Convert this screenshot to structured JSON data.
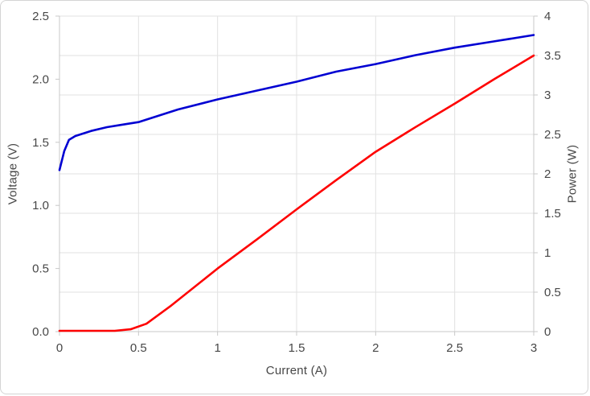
{
  "chart_data": {
    "type": "line",
    "title": "",
    "legend": "none",
    "grid": "on",
    "x_axis": {
      "label": "Current (A)",
      "range": [
        0,
        3
      ],
      "ticks": [
        0,
        0.5,
        1,
        1.5,
        2,
        2.5,
        3
      ],
      "tick_labels": [
        "0",
        "0.5",
        "1",
        "1.5",
        "2",
        "2.5",
        "3"
      ],
      "gridlines": true
    },
    "y_axis_left": {
      "label": "Voltage (V)",
      "range": [
        0,
        2.5
      ],
      "ticks": [
        0,
        0.5,
        1,
        1.5,
        2,
        2.5
      ],
      "tick_labels": [
        "0.0",
        "0.5",
        "1.0",
        "1.5",
        "2.0",
        "2.5"
      ],
      "gridlines": false
    },
    "y_axis_right": {
      "label": "Power (W)",
      "range": [
        0,
        4
      ],
      "ticks": [
        0,
        0.5,
        1,
        1.5,
        2,
        2.5,
        3,
        3.5,
        4
      ],
      "tick_labels": [
        "0",
        "0.5",
        "1",
        "1.5",
        "2",
        "2.5",
        "3",
        "3.5",
        "4"
      ],
      "gridlines": true
    },
    "series": [
      {
        "name": "Voltage",
        "axis": "left",
        "color": "#0000d2",
        "points": [
          [
            0,
            1.28
          ],
          [
            0.03,
            1.43
          ],
          [
            0.06,
            1.52
          ],
          [
            0.1,
            1.55
          ],
          [
            0.2,
            1.59
          ],
          [
            0.3,
            1.62
          ],
          [
            0.4,
            1.64
          ],
          [
            0.5,
            1.66
          ],
          [
            0.75,
            1.76
          ],
          [
            1.0,
            1.84
          ],
          [
            1.25,
            1.91
          ],
          [
            1.5,
            1.98
          ],
          [
            1.75,
            2.06
          ],
          [
            2.0,
            2.12
          ],
          [
            2.25,
            2.19
          ],
          [
            2.5,
            2.25
          ],
          [
            2.75,
            2.3
          ],
          [
            3.0,
            2.35
          ]
        ]
      },
      {
        "name": "Power",
        "axis": "right",
        "color": "#fe0000",
        "points": [
          [
            0,
            0.01
          ],
          [
            0.35,
            0.01
          ],
          [
            0.45,
            0.03
          ],
          [
            0.55,
            0.1
          ],
          [
            0.7,
            0.32
          ],
          [
            1.0,
            0.8
          ],
          [
            1.25,
            1.17
          ],
          [
            1.5,
            1.55
          ],
          [
            1.75,
            1.92
          ],
          [
            2.0,
            2.28
          ],
          [
            2.25,
            2.59
          ],
          [
            2.5,
            2.89
          ],
          [
            2.75,
            3.2
          ],
          [
            3.0,
            3.5
          ]
        ]
      }
    ]
  },
  "colors": {
    "voltage_line": "#0000d2",
    "power_line": "#fe0000",
    "gridline": "#e2e2e2",
    "axis_line": "#c8c8c8",
    "tick_text": "#474747",
    "frame_border": "#d4d4d4",
    "background": "#ffffff"
  }
}
